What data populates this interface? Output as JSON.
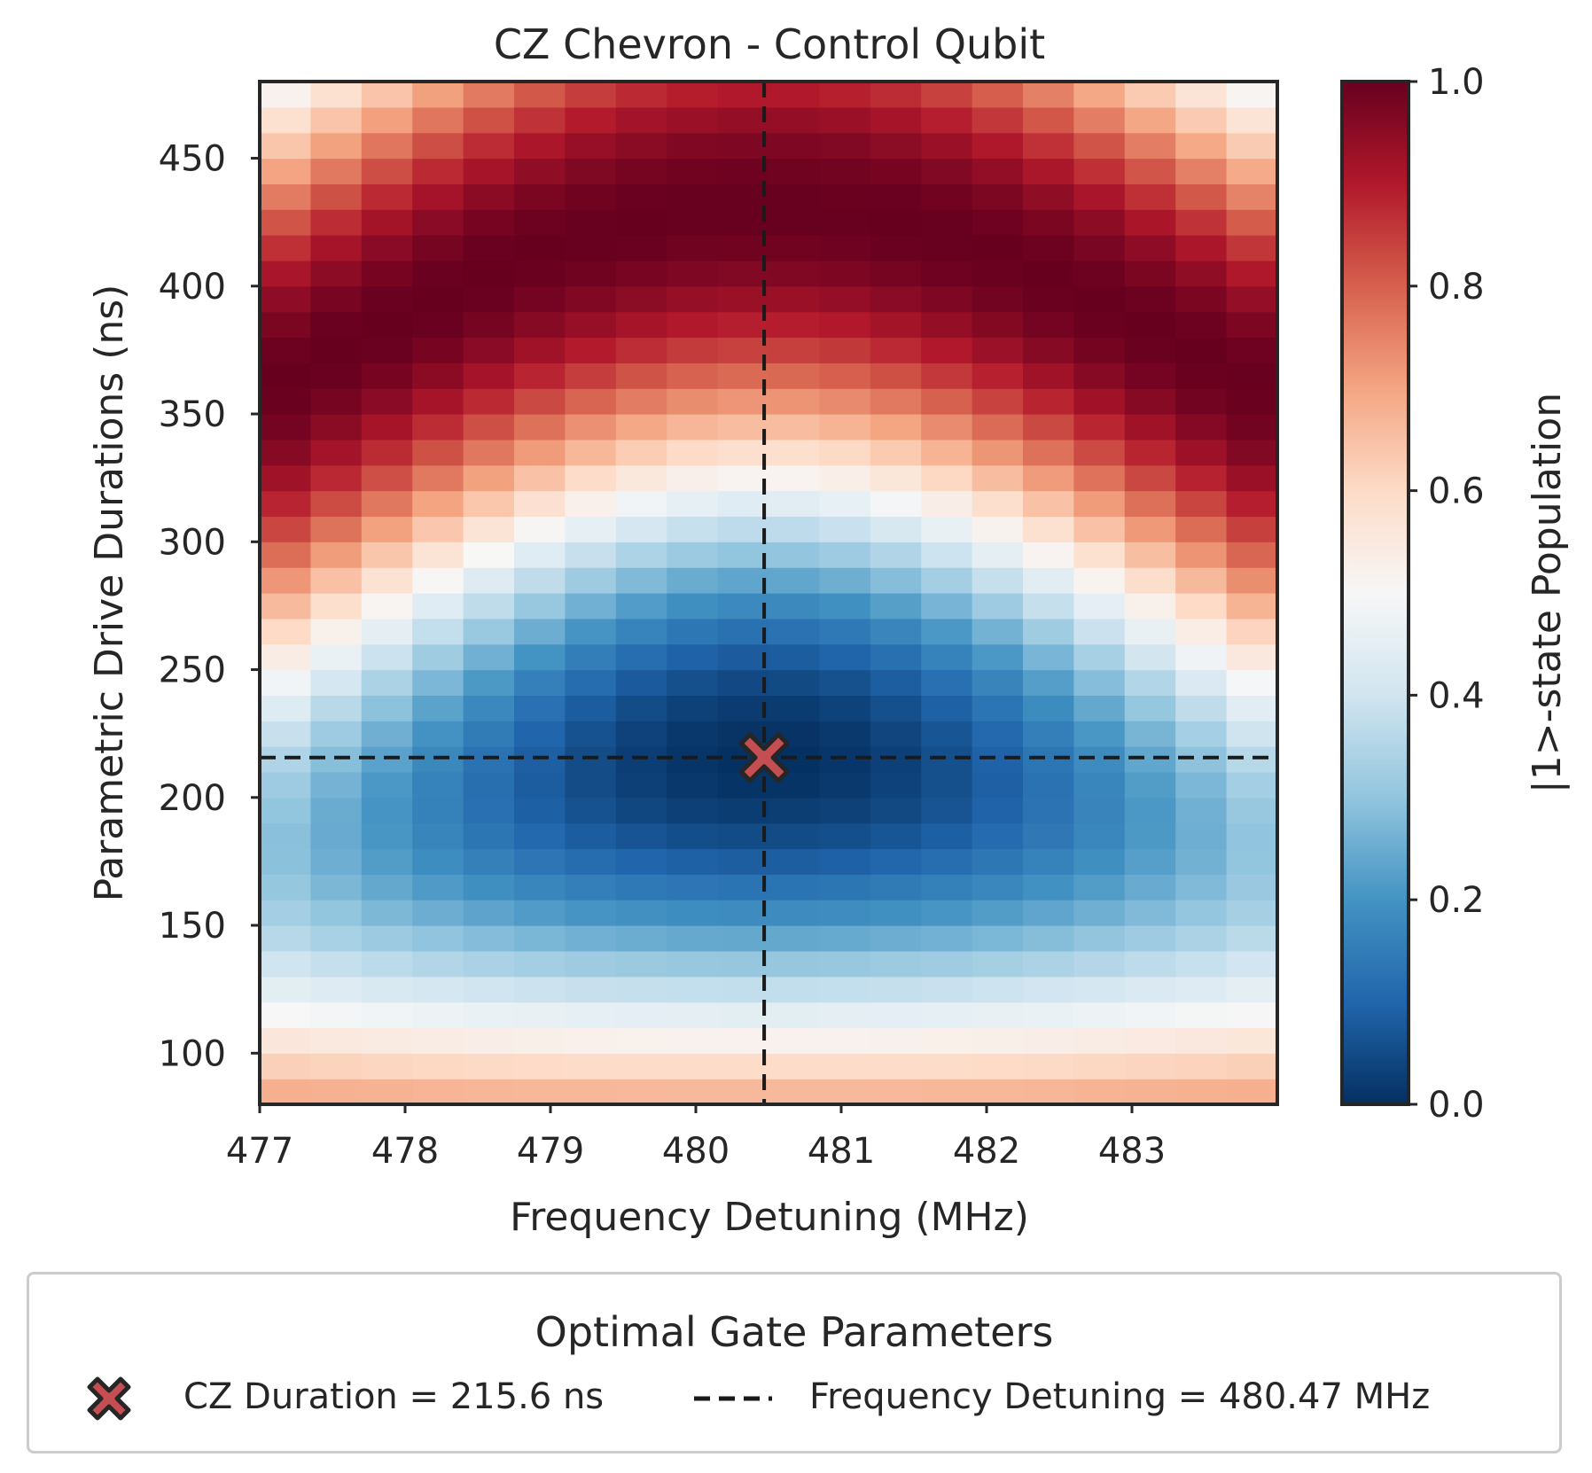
{
  "chart_data": {
    "type": "heatmap",
    "title": "CZ Chevron - Control Qubit",
    "xlabel": "Frequency Detuning (MHz)",
    "ylabel": "Parametric Drive Durations (ns)",
    "colorbar_label": "|1>-state Population",
    "colormap": "RdBu_r",
    "x_range": [
      477.0,
      484.0
    ],
    "y_range": [
      80.0,
      480.0
    ],
    "x_ticks": [
      "477",
      "478",
      "479",
      "480",
      "481",
      "482",
      "483"
    ],
    "y_ticks": [
      "100",
      "150",
      "200",
      "250",
      "300",
      "350",
      "400",
      "450"
    ],
    "colorbar_range": [
      0.0,
      1.0
    ],
    "colorbar_ticks": [
      "0.0",
      "0.2",
      "0.4",
      "0.6",
      "0.8",
      "1.0"
    ],
    "optimal_point": {
      "x": 480.47,
      "y": 215.6
    },
    "grid_description": "Approx. 20 detuning columns x 40 duration rows of population values; resonance centered near 480.5 MHz with chevron fringes."
  },
  "legend": {
    "title": "Optimal Gate Parameters",
    "marker_label": "CZ Duration = 215.6 ns",
    "line_label": "Frequency Detuning = 480.47 MHz"
  },
  "colors": {
    "marker_fill": "#c44e52",
    "marker_edge": "#262626",
    "dashed_line": "#1a1a1a",
    "axis": "#262626"
  }
}
